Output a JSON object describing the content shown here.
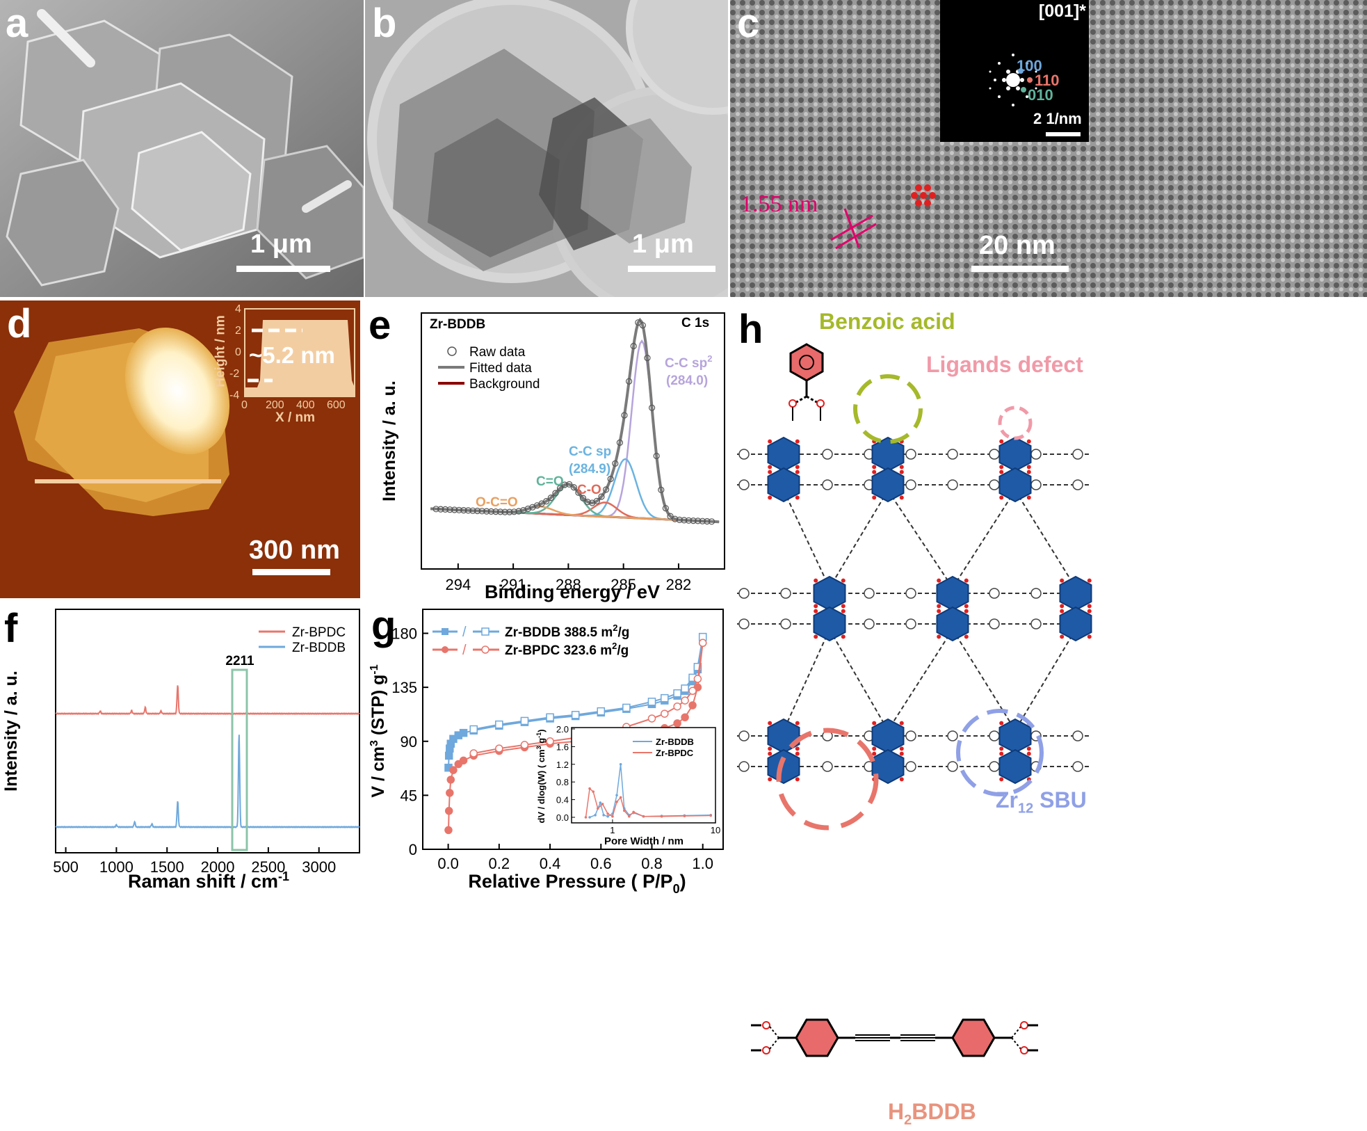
{
  "colors": {
    "bpdc": "#e8756b",
    "bddb": "#6ea8dc",
    "box": "#8cc4a8",
    "benzoic": "#a5b92a",
    "defect": "#f09aa8",
    "sbu": "#8fa0e6",
    "bddb_label": "#e8937e",
    "sbu_blue": "#1f5aa6"
  },
  "panel_a": {
    "label": "a",
    "scale_bar": "1 μm"
  },
  "panel_b": {
    "label": "b",
    "scale_bar": "1 μm"
  },
  "panel_c": {
    "label": "c",
    "scale_bar": "20 nm",
    "spacing": "1.55 nm",
    "inset": {
      "zone_axis": "[001]*",
      "spot_100": "100",
      "spot_110": "110",
      "spot_010": "010",
      "scale_bar": "2 1/nm"
    }
  },
  "panel_d": {
    "label": "d",
    "scale_bar": "300 nm",
    "inset": {
      "ylabel": "Height / nm",
      "xlabel": "X / nm",
      "annotation": "~5.2 nm",
      "yticks": [
        "4",
        "2",
        "0",
        "-2",
        "-4"
      ],
      "xticks": [
        "0",
        "200",
        "400",
        "600"
      ]
    }
  },
  "panel_e": {
    "label": "e",
    "sample": "Zr-BDDB",
    "region": "C 1s",
    "xlabel": "Binding energy / eV",
    "ylabel": "Intensity / a. u.",
    "legend": [
      "Raw data",
      "Fitted data",
      "Background"
    ],
    "peaks": [
      {
        "name": "C-C sp2",
        "name_base": "C-C sp",
        "name_sup": "2",
        "position": "(284.0)",
        "be": 284.0,
        "color": "#b6a4dc"
      },
      {
        "name": "C-C sp",
        "position": "(284.9)",
        "be": 284.9,
        "color": "#6ab3e0"
      },
      {
        "name": "C-O",
        "be": 286.0,
        "color": "#e06a5a"
      },
      {
        "name": "C=O",
        "be": 288.0,
        "color": "#5fb39a"
      },
      {
        "name": "O-C=O",
        "be": 289.5,
        "color": "#e8a060"
      }
    ],
    "xticks": [
      "294",
      "291",
      "288",
      "285",
      "282"
    ]
  },
  "panel_f": {
    "label": "f",
    "xlabel": "Raman shift / cm-1",
    "xlabel_base": "Raman shift / cm",
    "xlabel_sup": "-1",
    "ylabel": "Intensity / a. u.",
    "legend": [
      "Zr-BPDC",
      "Zr-BDDB"
    ],
    "peak_label": "2211",
    "xticks": [
      "500",
      "1000",
      "1500",
      "2000",
      "2500",
      "3000"
    ]
  },
  "panel_g": {
    "label": "g",
    "xlabel": "Relative Pressure ( P/P0)",
    "xlabel_base": "Relative Pressure ( P/P",
    "xlabel_sub": "0",
    "xlabel_end": ")",
    "ylabel": "V / cm3 (STP) g-1",
    "ylabel_parts": [
      "V / cm",
      "3",
      " (STP) g",
      "-1"
    ],
    "legend": [
      {
        "text": "Zr-BDDB 388.5 m2/g",
        "base": "Zr-BDDB 388.5 m",
        "sup": "2",
        "end": "/g"
      },
      {
        "text": "Zr-BPDC 323.6 m2/g",
        "base": "Zr-BPDC 323.6 m",
        "sup": "2",
        "end": "/g"
      }
    ],
    "slash": "/",
    "xticks": [
      "0.0",
      "0.2",
      "0.4",
      "0.6",
      "0.8",
      "1.0"
    ],
    "yticks": [
      "0",
      "45",
      "90",
      "135",
      "180"
    ],
    "inset": {
      "xlabel": "Pore Width / nm",
      "ylabel": "dV / dlog(W) ( cm3 g-1)",
      "ylabel_parts": [
        "dV / dlog(W) ( cm",
        "3",
        " g",
        "-1",
        ")"
      ],
      "legend": [
        "Zr-BDDB",
        "Zr-BPDC"
      ],
      "yticks": [
        "0.0",
        "0.4",
        "0.8",
        "1.2",
        "1.6",
        "2.0"
      ],
      "xticks": [
        "1",
        "10"
      ]
    }
  },
  "panel_h": {
    "label": "h",
    "benzoic_acid": "Benzoic acid",
    "ligands_defect": "Ligands defect",
    "sbu": "Zr12 SBU",
    "sbu_base": "Zr",
    "sbu_sub": "12",
    "sbu_end": " SBU",
    "ligand": "H2BDDB",
    "ligand_base": "H",
    "ligand_sub": "2",
    "ligand_end": "BDDB"
  },
  "chart_data": [
    {
      "type": "line",
      "id": "xps_c1s",
      "title": "Zr-BDDB C 1s",
      "xlabel": "Binding energy / eV",
      "ylabel": "Intensity / a. u.",
      "xlim": [
        296,
        279.5
      ],
      "x_reversed": true,
      "series": [
        {
          "name": "C-C sp2 (284.0)",
          "center": 284.0,
          "height": 1.0,
          "fwhm": 1.3
        },
        {
          "name": "C-C sp (284.9)",
          "center": 284.9,
          "height": 0.33,
          "fwhm": 1.4
        },
        {
          "name": "C-O",
          "center": 286.0,
          "height": 0.08,
          "fwhm": 1.5
        },
        {
          "name": "C=O",
          "center": 288.0,
          "height": 0.17,
          "fwhm": 1.6
        },
        {
          "name": "O-C=O",
          "center": 289.5,
          "height": 0.04,
          "fwhm": 1.6
        }
      ]
    },
    {
      "type": "line",
      "id": "raman",
      "xlabel": "Raman shift / cm-1",
      "ylabel": "Intensity / a. u.",
      "xlim": [
        400,
        3400
      ],
      "series": [
        {
          "name": "Zr-BPDC",
          "peaks": [
            [
              840,
              0.05
            ],
            [
              1150,
              0.06
            ],
            [
              1285,
              0.12
            ],
            [
              1440,
              0.05
            ],
            [
              1605,
              0.55
            ]
          ]
        },
        {
          "name": "Zr-BDDB",
          "peaks": [
            [
              1000,
              0.04
            ],
            [
              1180,
              0.1
            ],
            [
              1350,
              0.06
            ],
            [
              1605,
              0.5
            ],
            [
              2211,
              1.8
            ]
          ]
        }
      ]
    },
    {
      "type": "line",
      "id": "n2_isotherm",
      "xlabel": "Relative Pressure ( P/P0)",
      "ylabel": "V / cm3 (STP) g-1",
      "xlim": [
        -0.1,
        1.08
      ],
      "ylim": [
        0,
        200
      ],
      "series": [
        {
          "name": "Zr-BDDB adsorption",
          "x": [
            0.001,
            0.003,
            0.006,
            0.01,
            0.02,
            0.04,
            0.06,
            0.1,
            0.2,
            0.3,
            0.4,
            0.5,
            0.6,
            0.7,
            0.8,
            0.85,
            0.9,
            0.93,
            0.96,
            0.98,
            1.0
          ],
          "y": [
            68,
            78,
            84,
            88,
            92,
            95,
            97,
            99,
            103,
            106,
            109,
            111,
            114,
            117,
            121,
            124,
            128,
            132,
            140,
            150,
            177
          ]
        },
        {
          "name": "Zr-BDDB desorption",
          "x": [
            1.0,
            0.98,
            0.96,
            0.93,
            0.9,
            0.85,
            0.8,
            0.7,
            0.6,
            0.5,
            0.4,
            0.3,
            0.2,
            0.1
          ],
          "y": [
            177,
            152,
            143,
            134,
            130,
            126,
            123,
            118,
            115,
            112,
            110,
            107,
            104,
            100
          ]
        },
        {
          "name": "Zr-BPDC adsorption",
          "x": [
            0.001,
            0.003,
            0.006,
            0.01,
            0.02,
            0.04,
            0.06,
            0.1,
            0.2,
            0.3,
            0.4,
            0.5,
            0.6,
            0.7,
            0.8,
            0.85,
            0.9,
            0.93,
            0.96,
            0.98,
            1.0
          ],
          "y": [
            16,
            32,
            47,
            58,
            66,
            71,
            74,
            78,
            82,
            85,
            88,
            90,
            92,
            95,
            98,
            101,
            105,
            110,
            120,
            135,
            172
          ]
        },
        {
          "name": "Zr-BPDC desorption",
          "x": [
            1.0,
            0.98,
            0.96,
            0.93,
            0.9,
            0.85,
            0.8,
            0.7,
            0.6,
            0.5,
            0.4,
            0.3,
            0.2,
            0.1
          ],
          "y": [
            172,
            142,
            132,
            124,
            119,
            113,
            109,
            102,
            97,
            93,
            90,
            87,
            84,
            80
          ]
        }
      ]
    },
    {
      "type": "line",
      "id": "pore_size",
      "xlabel": "Pore Width / nm",
      "ylabel": "dV / dlog(W) ( cm3 g-1)",
      "x_log": true,
      "xlim": [
        0.4,
        10
      ],
      "ylim": [
        0,
        2.0
      ],
      "series": [
        {
          "name": "Zr-BDDB",
          "x": [
            0.6,
            0.68,
            0.76,
            0.82,
            0.9,
            1.0,
            1.1,
            1.2,
            1.3,
            1.45,
            1.6,
            2.0,
            3.0,
            5.0,
            9.0
          ],
          "y": [
            0.0,
            0.05,
            0.33,
            0.05,
            0.02,
            0.08,
            0.5,
            1.2,
            0.2,
            0.05,
            0.1,
            0.02,
            0.03,
            0.04,
            0.05
          ]
        },
        {
          "name": "Zr-BPDC",
          "x": [
            0.55,
            0.6,
            0.65,
            0.72,
            0.8,
            0.9,
            1.0,
            1.1,
            1.2,
            1.3,
            1.45,
            1.6,
            2.0,
            3.0,
            5.0,
            9.0
          ],
          "y": [
            0.0,
            0.65,
            0.58,
            0.2,
            0.3,
            0.08,
            0.02,
            0.35,
            0.45,
            0.15,
            0.02,
            0.12,
            0.02,
            0.02,
            0.03,
            0.04
          ]
        }
      ]
    }
  ]
}
